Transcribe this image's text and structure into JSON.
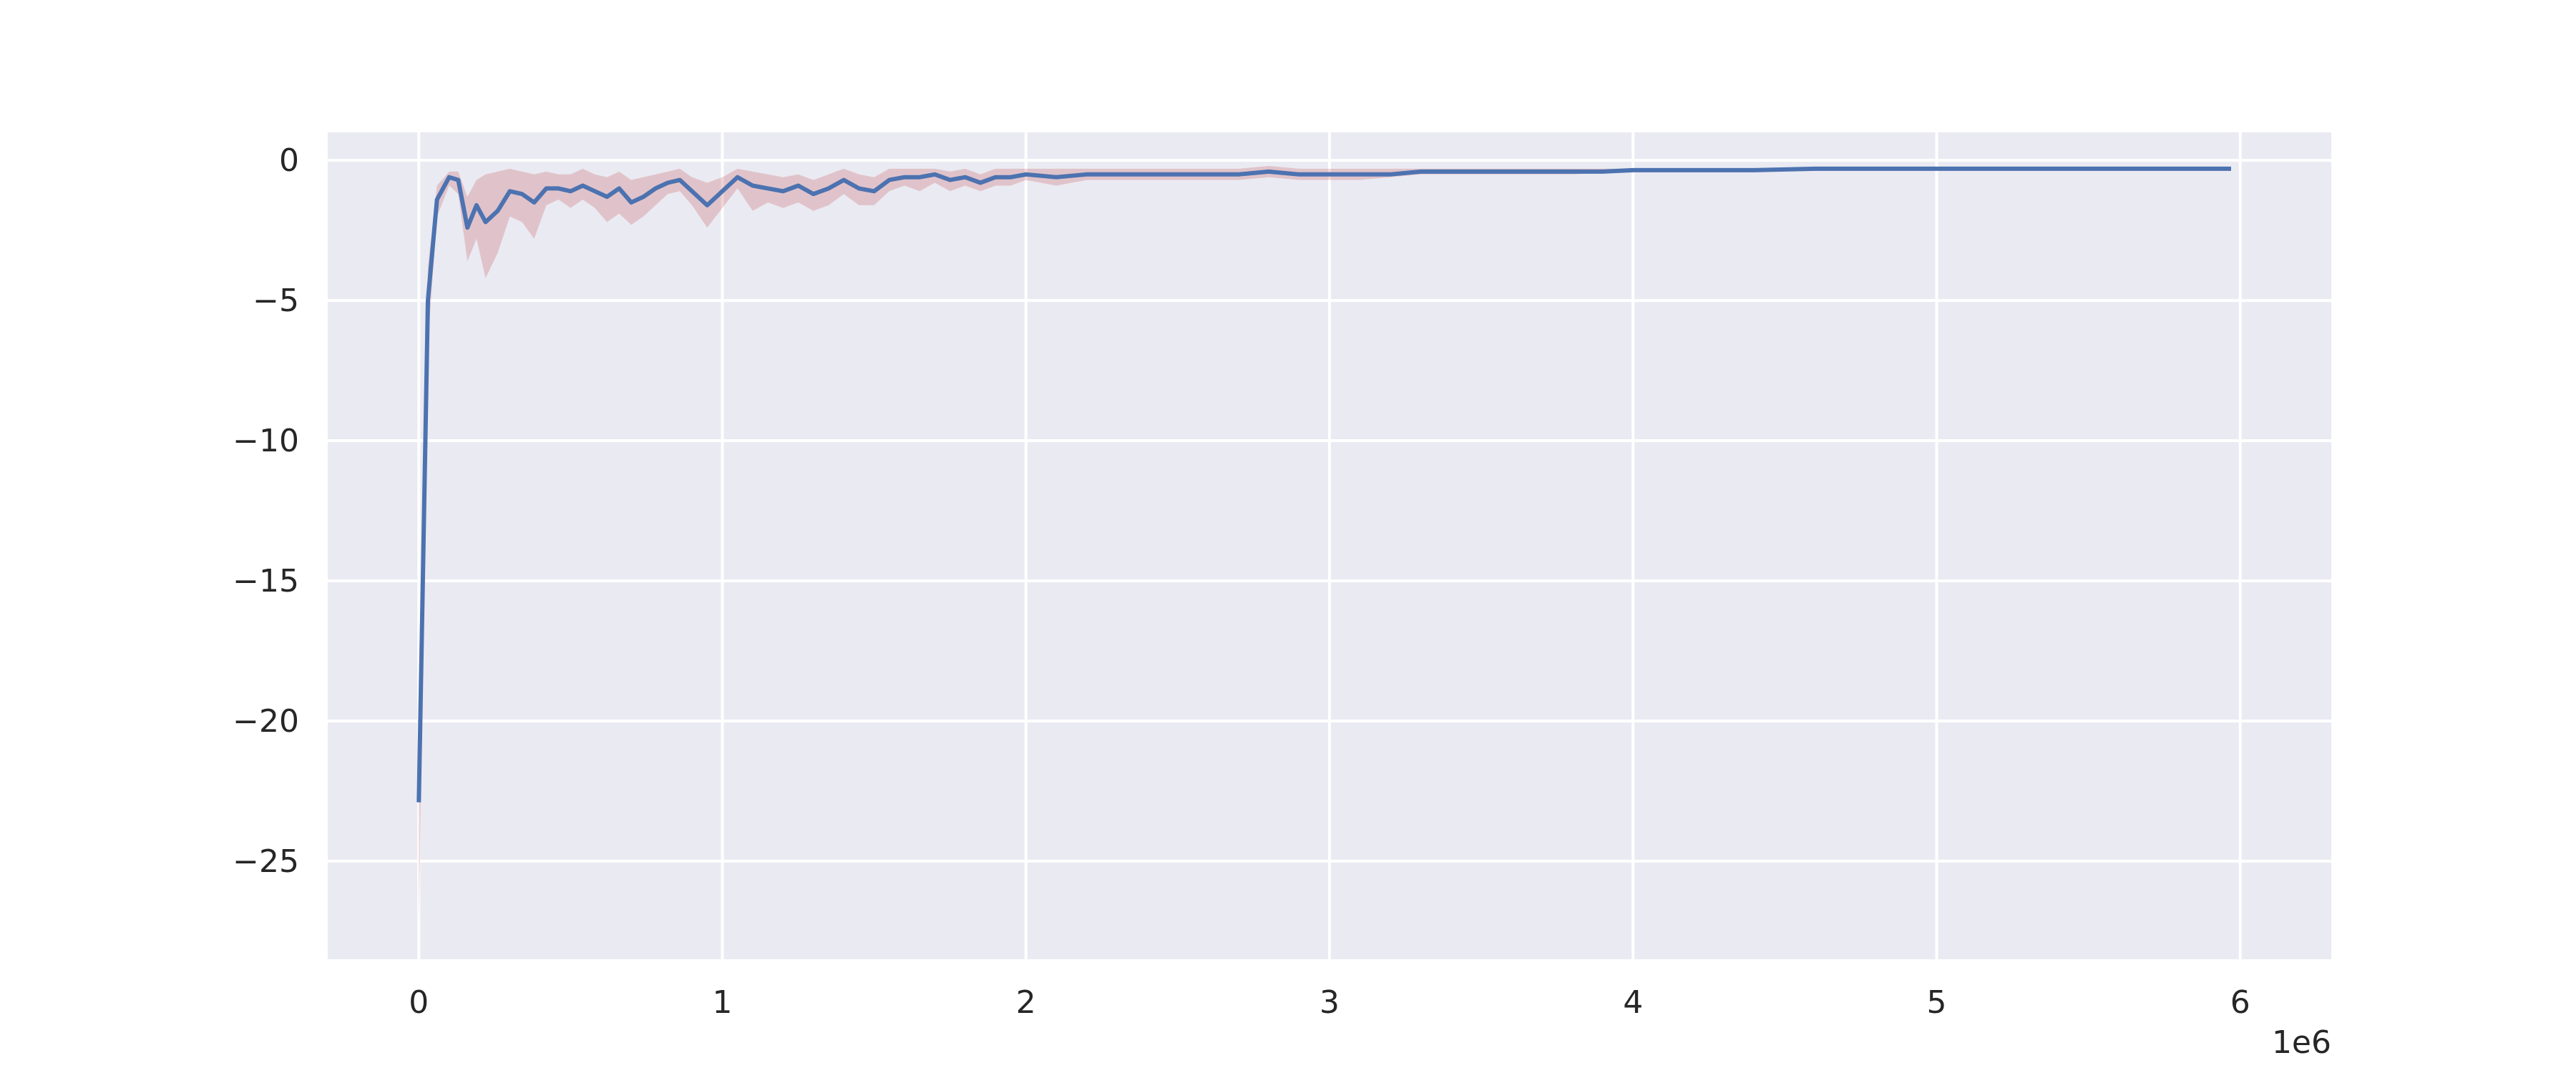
{
  "chart_data": {
    "type": "line",
    "title": "",
    "xlabel": "",
    "ylabel": "",
    "x_offset_label": "1e6",
    "xlim": [
      -300000,
      6300000
    ],
    "ylim": [
      -28.5,
      1.0
    ],
    "x_ticks": [
      0,
      1000000,
      2000000,
      3000000,
      4000000,
      5000000,
      6000000
    ],
    "x_tick_labels": [
      "0",
      "1",
      "2",
      "3",
      "4",
      "5",
      "6"
    ],
    "y_ticks": [
      0,
      -5,
      -10,
      -15,
      -20,
      -25
    ],
    "y_tick_labels": [
      "0",
      "−5",
      "−10",
      "−15",
      "−20",
      "−25"
    ],
    "grid": true,
    "colors": {
      "background": "#eaeaf2",
      "grid": "#ffffff",
      "line": "#4c72b0",
      "band": "#c44e52"
    },
    "series": [
      {
        "x": [
          0,
          30000,
          60000,
          100000,
          130000,
          160000,
          190000,
          220000,
          260000,
          300000,
          340000,
          380000,
          420000,
          460000,
          500000,
          540000,
          580000,
          620000,
          660000,
          700000,
          740000,
          780000,
          820000,
          860000,
          900000,
          950000,
          1000000,
          1050000,
          1100000,
          1150000,
          1200000,
          1250000,
          1300000,
          1350000,
          1400000,
          1450000,
          1500000,
          1550000,
          1600000,
          1650000,
          1700000,
          1750000,
          1800000,
          1850000,
          1900000,
          1950000,
          2000000,
          2100000,
          2200000,
          2300000,
          2400000,
          2500000,
          2600000,
          2700000,
          2800000,
          2900000,
          3000000,
          3100000,
          3200000,
          3300000,
          3400000,
          3500000,
          3600000,
          3700000,
          3800000,
          3900000,
          4000000,
          4200000,
          4400000,
          4600000,
          4800000,
          5000000,
          5200000,
          5400000,
          5600000,
          5800000,
          5970000
        ],
        "values": [
          -22.9,
          -5.0,
          -1.4,
          -0.6,
          -0.7,
          -2.4,
          -1.6,
          -2.2,
          -1.8,
          -1.1,
          -1.2,
          -1.5,
          -1.0,
          -1.0,
          -1.1,
          -0.9,
          -1.1,
          -1.3,
          -1.0,
          -1.5,
          -1.3,
          -1.0,
          -0.8,
          -0.7,
          -1.1,
          -1.6,
          -1.1,
          -0.6,
          -0.9,
          -1.0,
          -1.1,
          -0.9,
          -1.2,
          -1.0,
          -0.7,
          -1.0,
          -1.1,
          -0.7,
          -0.6,
          -0.6,
          -0.5,
          -0.7,
          -0.6,
          -0.8,
          -0.6,
          -0.6,
          -0.5,
          -0.6,
          -0.5,
          -0.5,
          -0.5,
          -0.5,
          -0.5,
          -0.5,
          -0.4,
          -0.5,
          -0.5,
          -0.5,
          -0.5,
          -0.4,
          -0.4,
          -0.4,
          -0.4,
          -0.4,
          -0.4,
          -0.4,
          -0.35,
          -0.35,
          -0.35,
          -0.3,
          -0.3,
          -0.3,
          -0.3,
          -0.3,
          -0.3,
          -0.3,
          -0.3
        ],
        "lower": [
          -27.3,
          -6.5,
          -2.0,
          -0.9,
          -1.2,
          -3.6,
          -2.8,
          -4.2,
          -3.3,
          -2.0,
          -2.2,
          -2.8,
          -1.6,
          -1.4,
          -1.7,
          -1.4,
          -1.7,
          -2.2,
          -1.9,
          -2.3,
          -2.0,
          -1.6,
          -1.2,
          -1.1,
          -1.6,
          -2.4,
          -1.7,
          -1.0,
          -1.8,
          -1.5,
          -1.7,
          -1.5,
          -1.8,
          -1.6,
          -1.2,
          -1.6,
          -1.6,
          -1.1,
          -0.9,
          -1.1,
          -0.8,
          -1.1,
          -0.9,
          -1.1,
          -0.9,
          -0.9,
          -0.7,
          -0.9,
          -0.7,
          -0.7,
          -0.7,
          -0.7,
          -0.7,
          -0.7,
          -0.6,
          -0.7,
          -0.7,
          -0.7,
          -0.6,
          -0.5,
          -0.5,
          -0.5,
          -0.5,
          -0.5,
          -0.5,
          -0.45,
          -0.4,
          -0.4,
          -0.4,
          -0.35,
          -0.35,
          -0.35,
          -0.35,
          -0.35,
          -0.33,
          -0.33,
          -0.33
        ],
        "upper": [
          -18.5,
          -3.8,
          -0.9,
          -0.4,
          -0.4,
          -1.3,
          -0.7,
          -0.5,
          -0.4,
          -0.3,
          -0.4,
          -0.5,
          -0.4,
          -0.5,
          -0.5,
          -0.3,
          -0.5,
          -0.6,
          -0.4,
          -0.7,
          -0.6,
          -0.5,
          -0.4,
          -0.3,
          -0.6,
          -0.8,
          -0.6,
          -0.3,
          -0.4,
          -0.5,
          -0.6,
          -0.5,
          -0.7,
          -0.5,
          -0.3,
          -0.5,
          -0.6,
          -0.3,
          -0.3,
          -0.3,
          -0.3,
          -0.4,
          -0.3,
          -0.5,
          -0.3,
          -0.3,
          -0.3,
          -0.3,
          -0.3,
          -0.3,
          -0.3,
          -0.3,
          -0.3,
          -0.3,
          -0.2,
          -0.3,
          -0.3,
          -0.3,
          -0.3,
          -0.3,
          -0.3,
          -0.3,
          -0.3,
          -0.3,
          -0.3,
          -0.3,
          -0.3,
          -0.3,
          -0.3,
          -0.25,
          -0.25,
          -0.25,
          -0.25,
          -0.25,
          -0.27,
          -0.27,
          -0.27
        ]
      }
    ]
  }
}
